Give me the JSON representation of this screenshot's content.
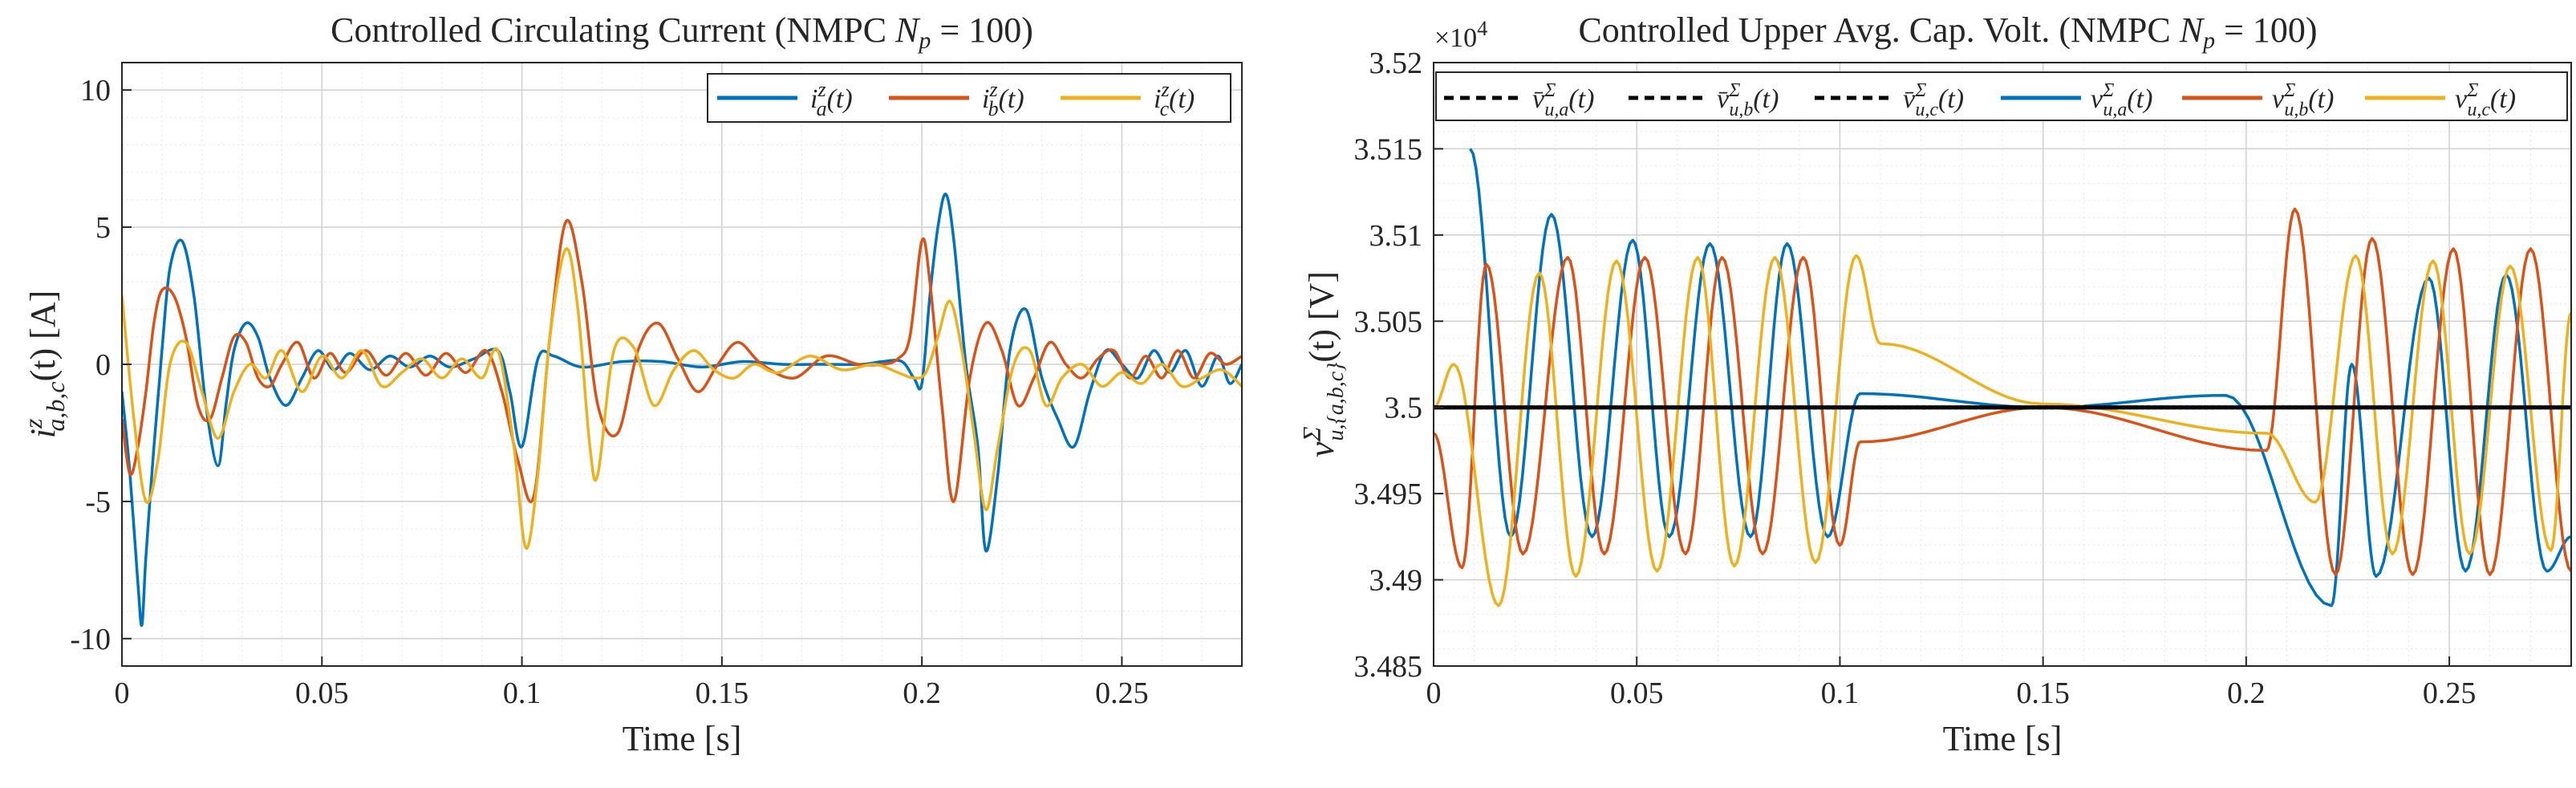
{
  "chart_data": [
    {
      "type": "line",
      "title": "Controlled Circulating Current (NMPC N_p = 100)",
      "xlabel": "Time [s]",
      "ylabel": "i^z_{a,b,c}(t) [A]",
      "xlim": [
        0,
        0.28
      ],
      "ylim": [
        -11,
        11
      ],
      "xticks": [
        0,
        0.05,
        0.1,
        0.15,
        0.2,
        0.25
      ],
      "xtick_labels": [
        "0",
        "0.05",
        "0.1",
        "0.15",
        "0.2",
        "0.25"
      ],
      "yticks": [
        -10,
        -5,
        0,
        5,
        10
      ],
      "ytick_labels": [
        "-10",
        "-5",
        "0",
        "5",
        "10"
      ],
      "grid": true,
      "legend_position": "top-right",
      "series": [
        {
          "name": "i_a^z(t)",
          "color": "#0072BD",
          "x": [
            0,
            0.002,
            0.004,
            0.005,
            0.006,
            0.008,
            0.01,
            0.012,
            0.015,
            0.018,
            0.021,
            0.024,
            0.026,
            0.028,
            0.031,
            0.034,
            0.037,
            0.041,
            0.045,
            0.049,
            0.053,
            0.057,
            0.062,
            0.067,
            0.072,
            0.077,
            0.082,
            0.088,
            0.094,
            0.097,
            0.1,
            0.104,
            0.108,
            0.115,
            0.125,
            0.135,
            0.145,
            0.155,
            0.165,
            0.175,
            0.185,
            0.19,
            0.195,
            0.198,
            0.2,
            0.202,
            0.204,
            0.206,
            0.208,
            0.211,
            0.214,
            0.216,
            0.219,
            0.222,
            0.226,
            0.23,
            0.234,
            0.238,
            0.242,
            0.246,
            0.25,
            0.254,
            0.258,
            0.262,
            0.266,
            0.27,
            0.274,
            0.277,
            0.28
          ],
          "values": [
            -1,
            -4,
            -8,
            -9.5,
            -7,
            -3,
            0.5,
            3.5,
            4.5,
            2.5,
            -1.5,
            -3.7,
            -1.5,
            0.5,
            1.5,
            1,
            -0.5,
            -1.5,
            -0.5,
            0.5,
            -0.2,
            0.4,
            -0.2,
            0.3,
            -0.1,
            0.3,
            -0.1,
            0.2,
            0.5,
            -1,
            -3,
            0.2,
            0.3,
            -0.1,
            0.1,
            0.1,
            -0.1,
            0.1,
            0,
            0,
            0,
            0.1,
            0.1,
            -0.5,
            -0.7,
            2.5,
            5,
            6.2,
            4.5,
            0,
            -3,
            -6.8,
            -4,
            0.5,
            2,
            -0.5,
            -2,
            -3,
            -1,
            0.5,
            0,
            -0.5,
            0.5,
            -0.3,
            0.5,
            -0.8,
            0.3,
            -0.7,
            0
          ]
        },
        {
          "name": "i_b^z(t)",
          "color": "#D95319",
          "x": [
            0,
            0.002,
            0.004,
            0.006,
            0.008,
            0.01,
            0.013,
            0.016,
            0.019,
            0.022,
            0.025,
            0.028,
            0.031,
            0.034,
            0.037,
            0.04,
            0.044,
            0.048,
            0.052,
            0.056,
            0.061,
            0.066,
            0.071,
            0.076,
            0.081,
            0.086,
            0.091,
            0.095,
            0.099,
            0.103,
            0.107,
            0.111,
            0.115,
            0.119,
            0.124,
            0.129,
            0.134,
            0.139,
            0.144,
            0.149,
            0.154,
            0.16,
            0.168,
            0.176,
            0.184,
            0.19,
            0.194,
            0.197,
            0.2,
            0.202,
            0.205,
            0.208,
            0.212,
            0.216,
            0.22,
            0.224,
            0.228,
            0.232,
            0.236,
            0.24,
            0.244,
            0.248,
            0.252,
            0.256,
            0.26,
            0.264,
            0.268,
            0.272,
            0.276,
            0.28
          ],
          "values": [
            -2,
            -4,
            -3,
            -1,
            1.5,
            2.7,
            2.5,
            1,
            -1.5,
            -2,
            -0.5,
            1,
            0.8,
            -0.5,
            -0.8,
            0,
            0.8,
            -0.5,
            0.4,
            -0.3,
            0.5,
            -0.4,
            0.4,
            -0.4,
            0.4,
            -0.3,
            0.5,
            -1,
            -3.5,
            -4.8,
            1,
            5.2,
            3,
            -1.5,
            -2.5,
            0.5,
            1.5,
            0.2,
            -1,
            0,
            0.8,
            0,
            -0.5,
            0.3,
            0,
            0,
            0.2,
            1,
            4.5,
            3,
            -1.5,
            -5,
            -0.5,
            1.5,
            0.5,
            -1.5,
            -0.5,
            0.8,
            0,
            -0.5,
            0.2,
            0.5,
            -0.5,
            0.3,
            -0.5,
            0.5,
            -0.5,
            0.4,
            0,
            0.3
          ]
        },
        {
          "name": "i_c^z(t)",
          "color": "#EDB120",
          "x": [
            0,
            0.003,
            0.006,
            0.009,
            0.012,
            0.016,
            0.02,
            0.024,
            0.028,
            0.032,
            0.036,
            0.04,
            0.045,
            0.05,
            0.055,
            0.06,
            0.065,
            0.07,
            0.075,
            0.08,
            0.085,
            0.09,
            0.094,
            0.098,
            0.101,
            0.104,
            0.107,
            0.111,
            0.114,
            0.117,
            0.119,
            0.123,
            0.128,
            0.133,
            0.138,
            0.143,
            0.148,
            0.153,
            0.158,
            0.164,
            0.172,
            0.18,
            0.188,
            0.194,
            0.198,
            0.201,
            0.204,
            0.207,
            0.21,
            0.213,
            0.216,
            0.219,
            0.223,
            0.227,
            0.231,
            0.235,
            0.24,
            0.245,
            0.25,
            0.255,
            0.26,
            0.265,
            0.27,
            0.275,
            0.28
          ],
          "values": [
            2.5,
            -2,
            -5,
            -3.5,
            0,
            0.8,
            -1,
            -2.7,
            -1,
            0,
            -0.5,
            0.5,
            -1,
            0.3,
            -0.5,
            0.5,
            -0.8,
            -0.3,
            0.2,
            -0.5,
            0.2,
            -0.5,
            0.5,
            -3,
            -6.7,
            -4,
            1,
            4.2,
            2,
            -3,
            -4,
            0.5,
            0.6,
            -1.5,
            -0.2,
            0.5,
            -0.2,
            -0.5,
            0,
            -0.3,
            0.3,
            -0.2,
            0,
            -0.3,
            -0.5,
            -0.3,
            1,
            2.3,
            0.5,
            -2.5,
            -5.3,
            -3,
            0,
            0.5,
            -1.5,
            -0.5,
            0,
            -0.8,
            -0.3,
            -0.7,
            0,
            -0.8,
            -0.5,
            -0.2,
            -0.8
          ]
        }
      ]
    },
    {
      "type": "line",
      "title": "Controlled Upper Avg. Cap. Volt. (NMPC N_p = 100)",
      "xlabel": "Time [s]",
      "ylabel": "v^Σ_{u,{a,b,c}}(t) [V]",
      "exponent_label": "×10^4",
      "xlim": [
        0,
        0.28
      ],
      "ylim": [
        3.485,
        3.52
      ],
      "xticks": [
        0,
        0.05,
        0.1,
        0.15,
        0.2,
        0.25
      ],
      "xtick_labels": [
        "0",
        "0.05",
        "0.1",
        "0.15",
        "0.2",
        "0.25"
      ],
      "yticks": [
        3.485,
        3.49,
        3.495,
        3.5,
        3.505,
        3.51,
        3.515,
        3.52
      ],
      "ytick_labels": [
        "3.485",
        "3.49",
        "3.495",
        "3.5",
        "3.505",
        "3.51",
        "3.515",
        "3.52"
      ],
      "grid": true,
      "legend_position": "top",
      "reference_series": [
        {
          "name": "v̄_{u,a}^Σ(t)",
          "color": "#000000",
          "value": 3.5
        },
        {
          "name": "v̄_{u,b}^Σ(t)",
          "color": "#000000",
          "value": 3.5
        },
        {
          "name": "v̄_{u,c}^Σ(t)",
          "color": "#000000",
          "value": 3.5
        }
      ],
      "oscillation_segments": [
        {
          "x_start": 0.0,
          "x_end": 0.105,
          "period": 0.0195
        },
        {
          "x_start": 0.21,
          "x_end": 0.28,
          "period": 0.0195
        }
      ],
      "series": [
        {
          "name": "v_{u,a}^Σ(t)",
          "color": "#0072BD",
          "peaks": [
            {
              "t": 0.009,
              "v": 3.515
            },
            {
              "t": 0.019,
              "v": 3.4925
            },
            {
              "t": 0.029,
              "v": 3.5112
            },
            {
              "t": 0.039,
              "v": 3.4925
            },
            {
              "t": 0.049,
              "v": 3.5097
            },
            {
              "t": 0.058,
              "v": 3.4925
            },
            {
              "t": 0.068,
              "v": 3.5095
            },
            {
              "t": 0.078,
              "v": 3.4925
            },
            {
              "t": 0.087,
              "v": 3.5095
            },
            {
              "t": 0.097,
              "v": 3.4925
            }
          ],
          "settle": {
            "at_0105": 3.5008,
            "at_0150": 3.5,
            "at_0195": 3.5007
          },
          "late_peaks": [
            {
              "t": 0.221,
              "v": 3.4885
            },
            {
              "t": 0.226,
              "v": 3.5025
            },
            {
              "t": 0.232,
              "v": 3.4902
            },
            {
              "t": 0.245,
              "v": 3.5075
            },
            {
              "t": 0.254,
              "v": 3.4905
            },
            {
              "t": 0.264,
              "v": 3.5077
            },
            {
              "t": 0.274,
              "v": 3.4905
            },
            {
              "t": 0.28,
              "v": 3.4925
            }
          ]
        },
        {
          "name": "v_{u,b}^Σ(t)",
          "color": "#D95319",
          "peaks": [
            {
              "t": 0.0,
              "v": 3.4985
            },
            {
              "t": 0.007,
              "v": 3.4907
            },
            {
              "t": 0.013,
              "v": 3.5083
            },
            {
              "t": 0.022,
              "v": 3.4915
            },
            {
              "t": 0.033,
              "v": 3.5087
            },
            {
              "t": 0.042,
              "v": 3.4915
            },
            {
              "t": 0.052,
              "v": 3.5087
            },
            {
              "t": 0.062,
              "v": 3.4915
            },
            {
              "t": 0.071,
              "v": 3.5087
            },
            {
              "t": 0.081,
              "v": 3.4915
            },
            {
              "t": 0.091,
              "v": 3.5087
            },
            {
              "t": 0.1,
              "v": 3.492
            }
          ],
          "settle": {
            "at_0105": 3.498,
            "at_0150": 3.5,
            "at_0205": 3.4975
          },
          "late_peaks": [
            {
              "t": 0.212,
              "v": 3.5115
            },
            {
              "t": 0.222,
              "v": 3.4903
            },
            {
              "t": 0.231,
              "v": 3.5098
            },
            {
              "t": 0.241,
              "v": 3.4903
            },
            {
              "t": 0.251,
              "v": 3.5092
            },
            {
              "t": 0.26,
              "v": 3.4903
            },
            {
              "t": 0.27,
              "v": 3.5092
            },
            {
              "t": 0.28,
              "v": 3.4905
            }
          ]
        },
        {
          "name": "v_{u,c}^Σ(t)",
          "color": "#EDB120",
          "peaks": [
            {
              "t": 0.0,
              "v": 3.5
            },
            {
              "t": 0.005,
              "v": 3.5025
            },
            {
              "t": 0.016,
              "v": 3.4885
            },
            {
              "t": 0.026,
              "v": 3.5078
            },
            {
              "t": 0.035,
              "v": 3.4902
            },
            {
              "t": 0.045,
              "v": 3.5085
            },
            {
              "t": 0.055,
              "v": 3.4905
            },
            {
              "t": 0.065,
              "v": 3.5087
            },
            {
              "t": 0.074,
              "v": 3.4908
            },
            {
              "t": 0.084,
              "v": 3.5087
            },
            {
              "t": 0.094,
              "v": 3.491
            },
            {
              "t": 0.104,
              "v": 3.5088
            }
          ],
          "settle": {
            "at_0110": 3.5037,
            "at_0150": 3.5002,
            "at_0205": 3.4985
          },
          "late_peaks": [
            {
              "t": 0.217,
              "v": 3.4945
            },
            {
              "t": 0.227,
              "v": 3.5088
            },
            {
              "t": 0.236,
              "v": 3.4915
            },
            {
              "t": 0.246,
              "v": 3.5085
            },
            {
              "t": 0.255,
              "v": 3.4915
            },
            {
              "t": 0.265,
              "v": 3.5082
            },
            {
              "t": 0.275,
              "v": 3.4917
            },
            {
              "t": 0.28,
              "v": 3.5055
            }
          ]
        }
      ]
    }
  ],
  "panels": [
    {
      "title_main": "Controlled Circulating Current (NMPC ",
      "title_var": "N",
      "title_sub": "p",
      "title_eq": " = 100)",
      "xlabel": "Time [s]",
      "ylabel_text": "i",
      "ylabel_sup": "z",
      "ylabel_sub": "a,b,c",
      "ylabel_rest": "(t) [A]",
      "legend": [
        {
          "var": "i",
          "sub": "a",
          "sup": "z",
          "rest": "(t)"
        },
        {
          "var": "i",
          "sub": "b",
          "sup": "z",
          "rest": "(t)"
        },
        {
          "var": "i",
          "sub": "c",
          "sup": "z",
          "rest": "(t)"
        }
      ]
    },
    {
      "title_main": "Controlled Upper Avg. Cap. Volt. (NMPC ",
      "title_var": "N",
      "title_sub": "p",
      "title_eq": " = 100)",
      "xlabel": "Time [s]",
      "ylabel_text": "v",
      "ylabel_sup": "Σ",
      "ylabel_sub": "u,{a,b,c}",
      "ylabel_rest": "(t) [V]",
      "exponent_base": "×10",
      "exponent_power": "4",
      "legend": [
        {
          "var": "v̄",
          "sub": "u,a",
          "sup": "Σ",
          "rest": "(t)"
        },
        {
          "var": "v̄",
          "sub": "u,b",
          "sup": "Σ",
          "rest": "(t)"
        },
        {
          "var": "v̄",
          "sub": "u,c",
          "sup": "Σ",
          "rest": "(t)"
        },
        {
          "var": "v",
          "sub": "u,a",
          "sup": "Σ",
          "rest": "(t)"
        },
        {
          "var": "v",
          "sub": "u,b",
          "sup": "Σ",
          "rest": "(t)"
        },
        {
          "var": "v",
          "sub": "u,c",
          "sup": "Σ",
          "rest": "(t)"
        }
      ]
    }
  ]
}
